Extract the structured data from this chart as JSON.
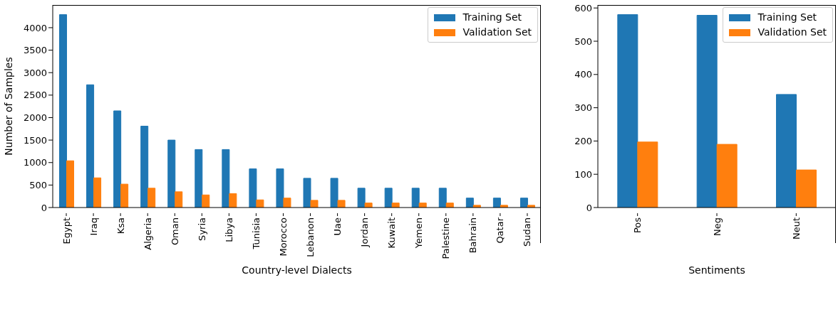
{
  "chart_data": [
    {
      "type": "bar",
      "xlabel": "Country-level Dialects",
      "ylabel": "Number of Samples",
      "categories": [
        "Egypt",
        "Iraq",
        "Ksa",
        "Algeria",
        "Oman",
        "Syria",
        "Libya",
        "Tunisia",
        "Morocco",
        "Lebanon",
        "Uae",
        "Jordan",
        "Kuwait",
        "Yemen",
        "Palestine",
        "Bahrain",
        "Qatar",
        "Sudan"
      ],
      "series": [
        {
          "name": "Training Set",
          "color": "#1f77b4",
          "values": [
            4290,
            2730,
            2150,
            1810,
            1500,
            1290,
            1290,
            860,
            860,
            650,
            650,
            430,
            430,
            430,
            430,
            210,
            210,
            210
          ]
        },
        {
          "name": "Validation Set",
          "color": "#ff7f0e",
          "values": [
            1040,
            660,
            520,
            430,
            350,
            280,
            310,
            170,
            210,
            160,
            160,
            100,
            100,
            100,
            100,
            50,
            50,
            50
          ]
        }
      ],
      "ylim": [
        0,
        4505
      ],
      "yticks": [
        0,
        500,
        1000,
        1500,
        2000,
        2500,
        3000,
        3500,
        4000
      ],
      "grid": false,
      "legend": "top right"
    },
    {
      "type": "bar",
      "xlabel": "Sentiments",
      "categories": [
        "Pos",
        "Neg",
        "Neut"
      ],
      "series": [
        {
          "name": "Training Set",
          "color": "#1f77b4",
          "values": [
            580,
            578,
            340
          ]
        },
        {
          "name": "Validation Set",
          "color": "#ff7f0e",
          "values": [
            197,
            190,
            113
          ]
        }
      ],
      "ylim": [
        0,
        609
      ],
      "yticks": [
        0,
        100,
        200,
        300,
        400,
        500,
        600
      ],
      "grid": false,
      "legend": "top right"
    }
  ]
}
